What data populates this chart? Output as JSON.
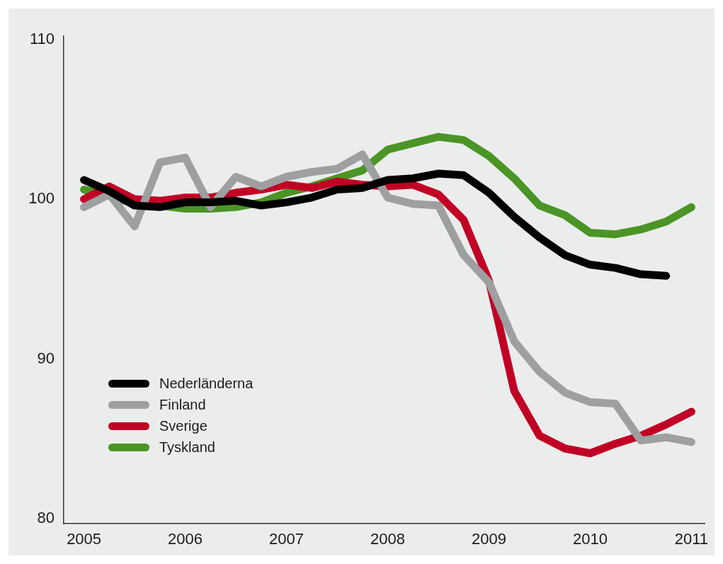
{
  "chart_data": {
    "type": "line",
    "x": [
      2005,
      2005.25,
      2005.5,
      2005.75,
      2006,
      2006.25,
      2006.5,
      2006.75,
      2007,
      2007.25,
      2007.5,
      2007.75,
      2008,
      2008.25,
      2008.5,
      2008.75,
      2009,
      2009.25,
      2009.5,
      2009.75,
      2010,
      2010.25,
      2010.5,
      2010.75,
      2011
    ],
    "xlim": [
      2004.8,
      2011.13
    ],
    "xticks": [
      2005,
      2006,
      2007,
      2008,
      2009,
      2010,
      2011
    ],
    "ylim": [
      79.7,
      110.2
    ],
    "yticks": [
      80,
      90,
      100,
      110
    ],
    "grid": false,
    "legend": "bottom left",
    "marker": "none",
    "line_style": "solid",
    "series": [
      {
        "name": "Nederländerna",
        "color": "#000000",
        "values": [
          101.2,
          100.5,
          99.6,
          99.5,
          99.8,
          99.8,
          99.9,
          99.6,
          99.8,
          100.1,
          100.6,
          100.7,
          101.2,
          101.3,
          101.6,
          101.5,
          100.4,
          98.9,
          97.6,
          96.5,
          95.9,
          95.7,
          95.3,
          95.2,
          null
        ]
      },
      {
        "name": "Finland",
        "color": "#9d9fa1",
        "values": [
          99.5,
          100.3,
          98.3,
          102.3,
          102.6,
          99.5,
          101.4,
          100.8,
          101.4,
          101.7,
          101.9,
          102.8,
          100.1,
          99.7,
          99.6,
          96.5,
          94.8,
          91.1,
          89.2,
          87.9,
          87.3,
          87.2,
          84.9,
          85.1,
          84.8
        ]
      },
      {
        "name": "Sverige",
        "color": "#c10025",
        "values": [
          100.0,
          100.8,
          100.0,
          99.9,
          100.1,
          100.1,
          100.4,
          100.6,
          100.9,
          100.7,
          101.1,
          100.9,
          100.8,
          100.9,
          100.3,
          98.7,
          94.9,
          88.0,
          85.2,
          84.4,
          84.1,
          84.7,
          85.2,
          85.9,
          86.7
        ]
      },
      {
        "name": "Tyskland",
        "color": "#4b9426",
        "values": [
          100.6,
          100.2,
          99.7,
          99.6,
          99.4,
          99.4,
          99.5,
          99.8,
          100.4,
          100.8,
          101.3,
          101.8,
          103.1,
          103.5,
          103.9,
          103.7,
          102.7,
          101.3,
          99.6,
          99.0,
          97.9,
          97.8,
          98.1,
          98.6,
          99.5
        ]
      }
    ]
  }
}
